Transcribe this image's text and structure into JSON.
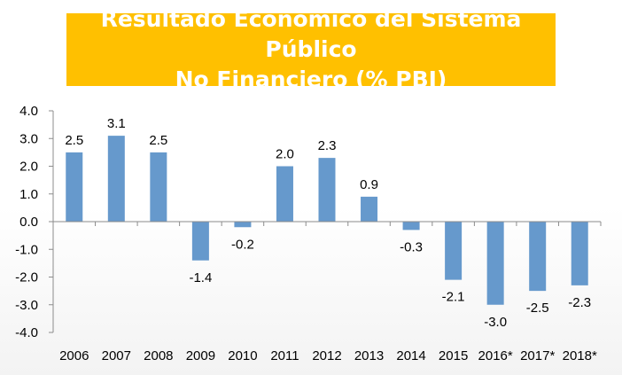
{
  "chart_data": {
    "type": "bar",
    "title_line1": "Resultado Económico del Sistema Público",
    "title_line2": "No Financiero (% PBI)",
    "categories": [
      "2006",
      "2007",
      "2008",
      "2009",
      "2010",
      "2011",
      "2012",
      "2013",
      "2014",
      "2015",
      "2016*",
      "2017*",
      "2018*"
    ],
    "values": [
      2.5,
      3.1,
      2.5,
      -1.4,
      -0.2,
      2.0,
      2.3,
      0.9,
      -0.3,
      -2.1,
      -3.0,
      -2.5,
      -2.3
    ],
    "value_labels": [
      "2.5",
      "3.1",
      "2.5",
      "-1.4",
      "-0.2",
      "2.0",
      "2.3",
      "0.9",
      "-0.3",
      "-2.1",
      "-3.0",
      "-2.5",
      "-2.3"
    ],
    "yticks": [
      "4.0",
      "3.0",
      "2.0",
      "1.0",
      "0.0",
      "-1.0",
      "-2.0",
      "-3.0",
      "-4.0"
    ],
    "ytick_values": [
      4,
      3,
      2,
      1,
      0,
      -1,
      -2,
      -3,
      -4
    ],
    "ylim": [
      -4,
      4
    ],
    "xlabel": "",
    "ylabel": "",
    "grid": false,
    "bar_color": "#6699cc",
    "title_bg": "#ffc000",
    "title_color": "#ffffff"
  }
}
